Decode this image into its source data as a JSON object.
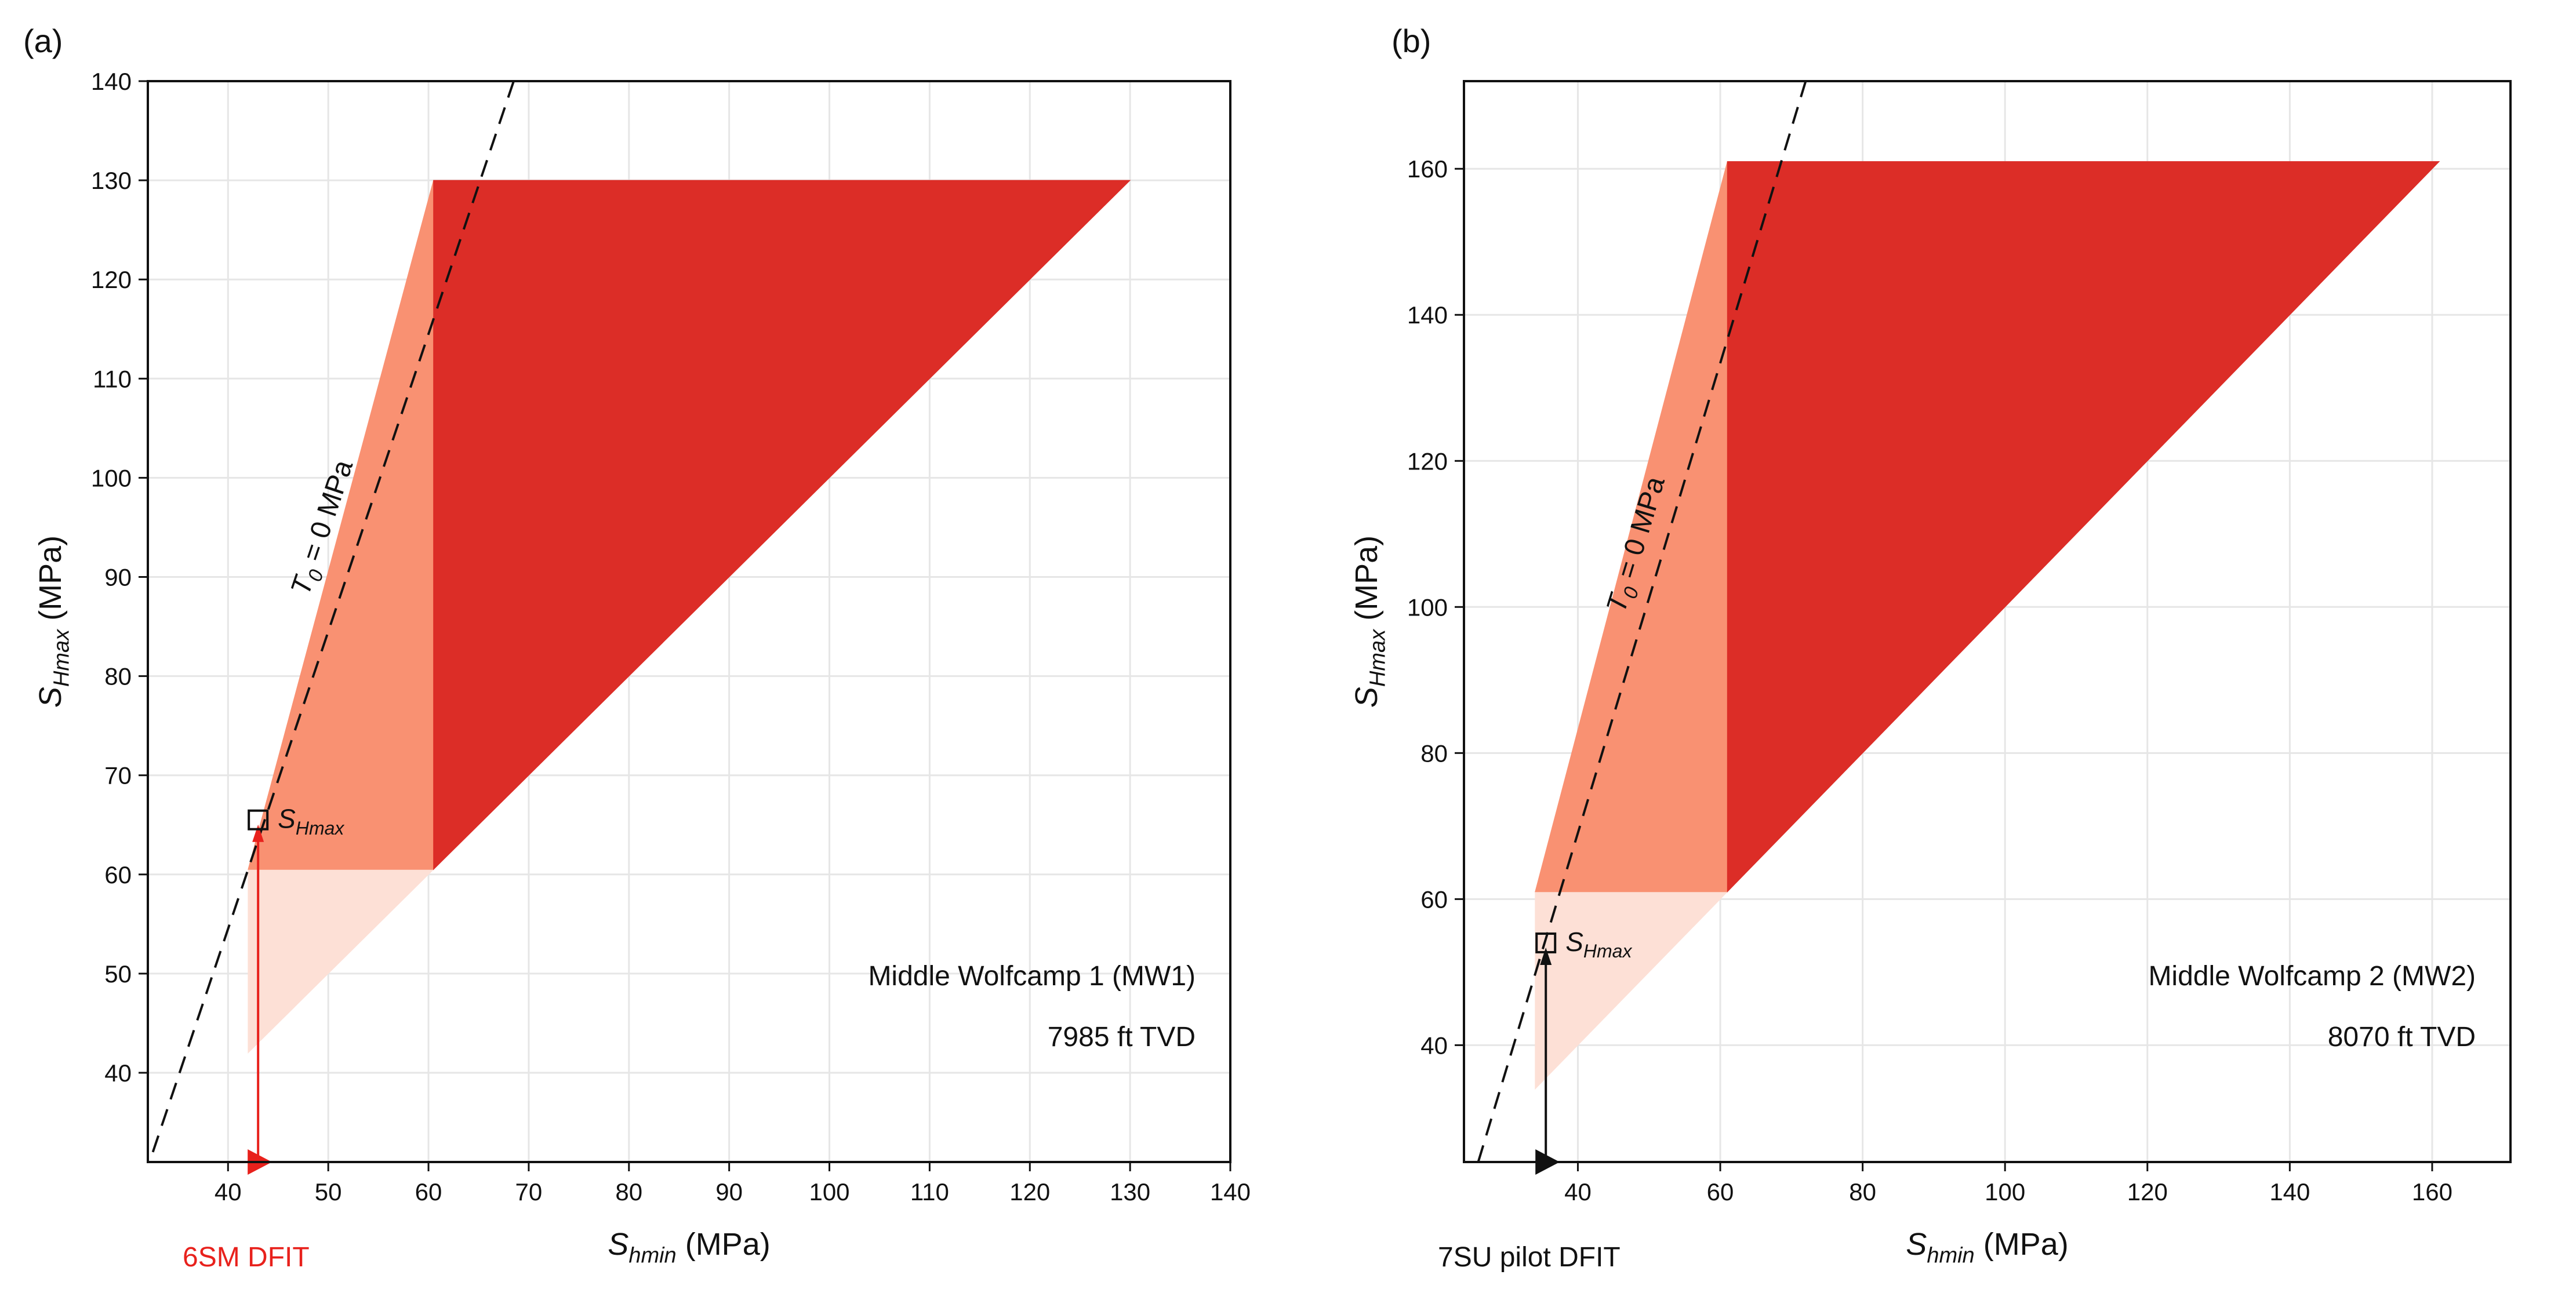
{
  "chart_data": [
    {
      "panel_label": "(a)",
      "type": "area",
      "xlabel": {
        "symbol": "S",
        "subscript": "hmin",
        "unit": " (MPa)"
      },
      "ylabel": {
        "symbol": "S",
        "subscript": "Hmax",
        "unit": " (MPa)"
      },
      "xlim": [
        32,
        140
      ],
      "ylim": [
        31,
        140
      ],
      "xticks": [
        40,
        50,
        60,
        70,
        80,
        90,
        100,
        110,
        120,
        130,
        140
      ],
      "yticks": [
        40,
        50,
        60,
        70,
        80,
        90,
        100,
        110,
        120,
        130,
        140
      ],
      "grid": true,
      "colors": {
        "polygon_light": "#fde0d6",
        "polygon_mid": "#f99172",
        "polygon_dark": "#dc2d27",
        "arrow": "#e8211c",
        "tag": "#e8211c"
      },
      "regions": [
        {
          "name": "light",
          "color": "#fde0d6",
          "points": [
            [
              42,
              42
            ],
            [
              42,
              60.5
            ],
            [
              60.5,
              60.5
            ]
          ]
        },
        {
          "name": "mid",
          "color": "#f99172",
          "points": [
            [
              42,
              60.5
            ],
            [
              60.5,
              130
            ],
            [
              60.5,
              60.5
            ]
          ]
        },
        {
          "name": "dark",
          "color": "#dc2d27",
          "points": [
            [
              60.5,
              60.5
            ],
            [
              60.5,
              130
            ],
            [
              130,
              130
            ]
          ]
        }
      ],
      "t0_line": {
        "label": {
          "symbol": "T",
          "subscript": "0",
          "rest": " = 0 MPa"
        },
        "points": [
          [
            32.5,
            32
          ],
          [
            68.5,
            140
          ]
        ]
      },
      "shmax_point": {
        "x": 43,
        "y": 65.5,
        "label": {
          "symbol": "S",
          "subscript": "Hmax"
        }
      },
      "dfit": {
        "x": 43,
        "label": "6SM DFIT",
        "color": "#e8211c"
      },
      "annotation": [
        "Middle Wolfcamp 1 (MW1)",
        "7985 ft TVD"
      ]
    },
    {
      "panel_label": "(b)",
      "type": "area",
      "xlabel": {
        "symbol": "S",
        "subscript": "hmin",
        "unit": " (MPa)"
      },
      "ylabel": {
        "symbol": "S",
        "subscript": "Hmax",
        "unit": " (MPa)"
      },
      "xlim": [
        24,
        171
      ],
      "ylim": [
        24,
        172
      ],
      "xticks": [
        40,
        60,
        80,
        100,
        120,
        140,
        160
      ],
      "yticks": [
        40,
        60,
        80,
        100,
        120,
        140,
        160
      ],
      "grid": true,
      "colors": {
        "polygon_light": "#fde0d6",
        "polygon_mid": "#f99172",
        "polygon_dark": "#dc2d27",
        "arrow": "#111111",
        "tag": "#111111"
      },
      "regions": [
        {
          "name": "light",
          "color": "#fde0d6",
          "points": [
            [
              34,
              34
            ],
            [
              34,
              61
            ],
            [
              61,
              61
            ]
          ]
        },
        {
          "name": "mid",
          "color": "#f99172",
          "points": [
            [
              34,
              61
            ],
            [
              61,
              161
            ],
            [
              61,
              61
            ]
          ]
        },
        {
          "name": "dark",
          "color": "#dc2d27",
          "points": [
            [
              61,
              61
            ],
            [
              61,
              161
            ],
            [
              161,
              161
            ]
          ]
        }
      ],
      "t0_line": {
        "label": {
          "symbol": "T",
          "subscript": "0",
          "rest": " = 0 MPa"
        },
        "points": [
          [
            26,
            24
          ],
          [
            72,
            172
          ]
        ]
      },
      "shmax_point": {
        "x": 35.5,
        "y": 54,
        "label": {
          "symbol": "S",
          "subscript": "Hmax"
        }
      },
      "dfit": {
        "x": 35.5,
        "label": "7SU pilot DFIT",
        "color": "#111111"
      },
      "annotation": [
        "Middle Wolfcamp 2 (MW2)",
        "8070 ft TVD"
      ]
    }
  ]
}
